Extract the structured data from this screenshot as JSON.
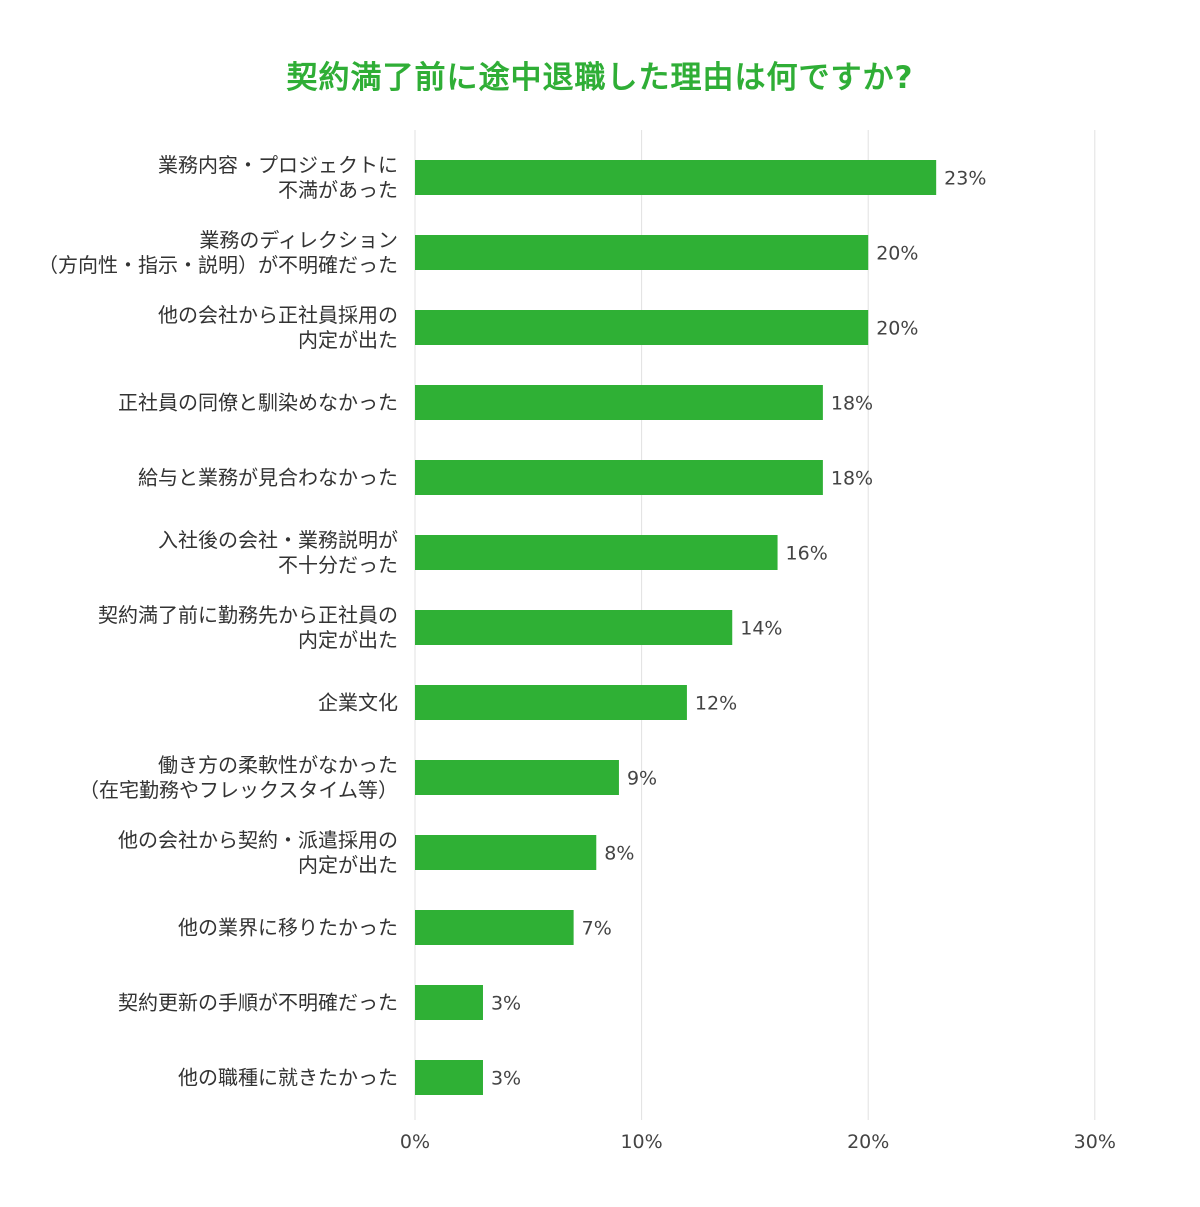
{
  "chart_data": {
    "type": "bar",
    "orientation": "horizontal",
    "title": "契約満了前に途中退職した理由は何ですか?",
    "categories": [
      [
        "業務内容・プロジェクトに",
        "不満があった"
      ],
      [
        "業務のディレクション",
        "（方向性・指示・説明）が不明確だった"
      ],
      [
        "他の会社から正社員採用の",
        "内定が出た"
      ],
      [
        "正社員の同僚と馴染めなかった"
      ],
      [
        "給与と業務が見合わなかった"
      ],
      [
        "入社後の会社・業務説明が",
        "不十分だった"
      ],
      [
        "契約満了前に勤務先から正社員の",
        "内定が出た"
      ],
      [
        "企業文化"
      ],
      [
        "働き方の柔軟性がなかった",
        "（在宅勤務やフレックスタイム等）"
      ],
      [
        "他の会社から契約・派遣採用の",
        "内定が出た"
      ],
      [
        "他の業界に移りたかった"
      ],
      [
        "契約更新の手順が不明確だった"
      ],
      [
        "他の職種に就きたかった"
      ]
    ],
    "values": [
      23,
      20,
      20,
      18,
      18,
      16,
      14,
      12,
      9,
      8,
      7,
      3,
      3
    ],
    "value_labels": [
      "23%",
      "20%",
      "20%",
      "18%",
      "18%",
      "16%",
      "14%",
      "12%",
      "9%",
      "8%",
      "7%",
      "3%",
      "3%"
    ],
    "xlim": [
      0,
      30
    ],
    "x_ticks": [
      0,
      10,
      20,
      30
    ],
    "x_tick_labels": [
      "0%",
      "10%",
      "20%",
      "30%"
    ],
    "grid": true,
    "bar_color": "#2fb035",
    "title_color": "#2fae36",
    "grid_color": "#e2e2e2"
  }
}
